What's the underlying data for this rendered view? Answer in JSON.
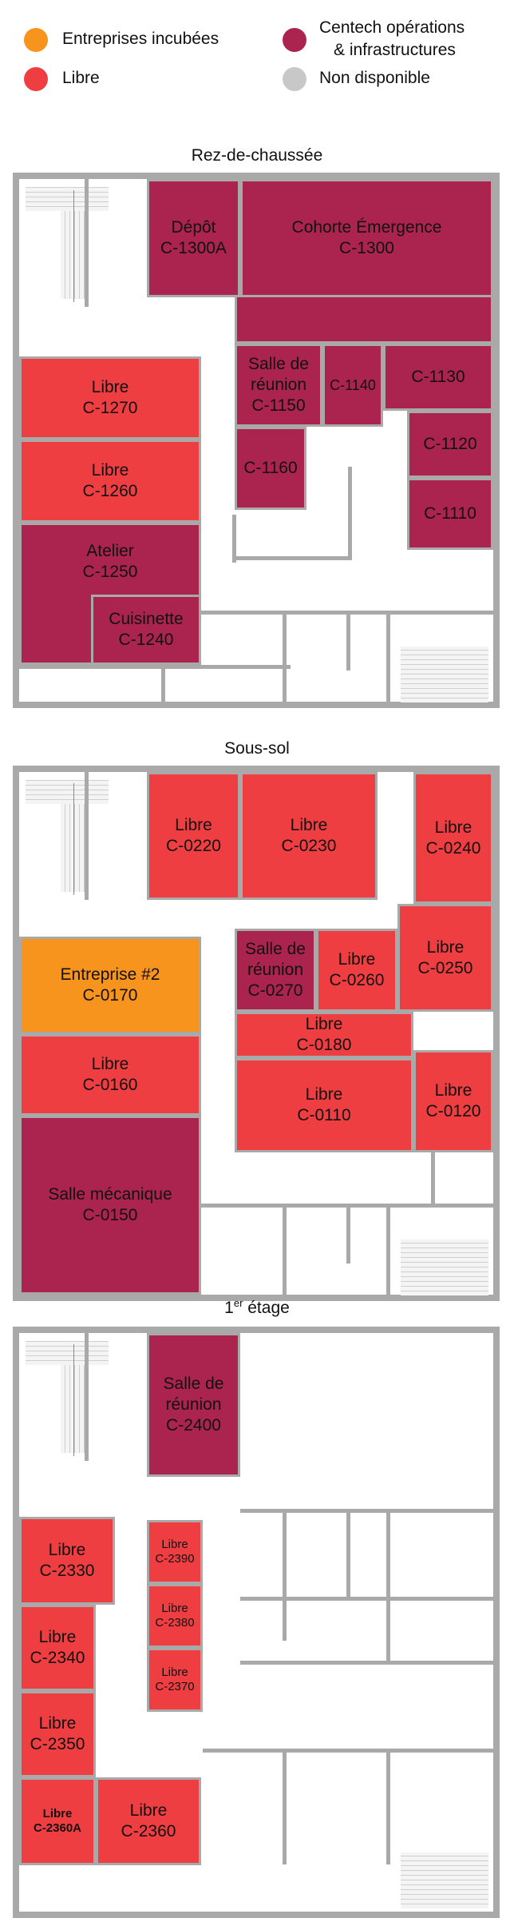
{
  "legend": {
    "incubated": {
      "label": "Entreprises incubées",
      "color": "#f7941d"
    },
    "free": {
      "label": "Libre",
      "color": "#ef3e42"
    },
    "centech": {
      "label_line1": "Centech opérations",
      "label_line2": "& infrastructures",
      "color": "#ab2450"
    },
    "unavailable": {
      "label": "Non disponible",
      "color": "#c8c8c8"
    }
  },
  "floors": {
    "ground": {
      "title": "Rez-de-chaussée",
      "rooms": {
        "depot": {
          "name": "Dépôt",
          "code": "C-1300A",
          "status": "centech"
        },
        "cohorte": {
          "name": "Cohorte Émergence",
          "code": "C-1300",
          "status": "centech"
        },
        "c1270": {
          "name": "Libre",
          "code": "C-1270",
          "status": "libre"
        },
        "c1150": {
          "name_line1": "Salle de",
          "name_line2": "réunion",
          "code": "C-1150",
          "status": "centech"
        },
        "c1140": {
          "code": "C-1140",
          "status": "centech"
        },
        "c1130": {
          "code": "C-1130",
          "status": "centech"
        },
        "c1260": {
          "name": "Libre",
          "code": "C-1260",
          "status": "libre"
        },
        "c1160": {
          "code": "C-1160",
          "status": "centech"
        },
        "c1120": {
          "code": "C-1120",
          "status": "centech"
        },
        "c1110": {
          "code": "C-1110",
          "status": "centech"
        },
        "atelier": {
          "name": "Atelier",
          "code": "C-1250",
          "status": "centech"
        },
        "cuisinette": {
          "name": "Cuisinette",
          "code": "C-1240",
          "status": "centech"
        }
      }
    },
    "basement": {
      "title": "Sous-sol",
      "rooms": {
        "c0220": {
          "name": "Libre",
          "code": "C-0220",
          "status": "libre"
        },
        "c0230": {
          "name": "Libre",
          "code": "C-0230",
          "status": "libre"
        },
        "c0240": {
          "name": "Libre",
          "code": "C-0240",
          "status": "libre"
        },
        "c0170": {
          "name": "Entreprise #2",
          "code": "C-0170",
          "status": "incub"
        },
        "c0270": {
          "name_line1": "Salle de",
          "name_line2": "réunion",
          "code": "C-0270",
          "status": "centech"
        },
        "c0260": {
          "name": "Libre",
          "code": "C-0260",
          "status": "libre"
        },
        "c0250": {
          "name": "Libre",
          "code": "C-0250",
          "status": "libre"
        },
        "c0180": {
          "name": "Libre",
          "code": "C-0180",
          "status": "libre"
        },
        "c0160": {
          "name": "Libre",
          "code": "C-0160",
          "status": "libre"
        },
        "c0110": {
          "name": "Libre",
          "code": "C-0110",
          "status": "libre"
        },
        "c0120": {
          "name": "Libre",
          "code": "C-0120",
          "status": "libre"
        },
        "c0150": {
          "name": "Salle mécanique",
          "code": "C-0150",
          "status": "centech"
        }
      }
    },
    "first": {
      "title_base": "1",
      "title_sup": "er",
      "title_rest": " étage",
      "rooms": {
        "c2400": {
          "name_line1": "Salle de",
          "name_line2": "réunion",
          "code": "C-2400",
          "status": "centech"
        },
        "c2330": {
          "name": "Libre",
          "code": "C-2330",
          "status": "libre"
        },
        "c2390": {
          "name": "Libre",
          "code": "C-2390",
          "status": "libre"
        },
        "c2380": {
          "name": "Libre",
          "code": "C-2380",
          "status": "libre"
        },
        "c2340": {
          "name": "Libre",
          "code": "C-2340",
          "status": "libre"
        },
        "c2370": {
          "name": "Libre",
          "code": "C-2370",
          "status": "libre"
        },
        "c2350": {
          "name": "Libre",
          "code": "C-2350",
          "status": "libre"
        },
        "c2360a": {
          "name": "Libre",
          "code": "C-2360A",
          "status": "libre"
        },
        "c2360": {
          "name": "Libre",
          "code": "C-2360",
          "status": "libre"
        }
      }
    }
  }
}
